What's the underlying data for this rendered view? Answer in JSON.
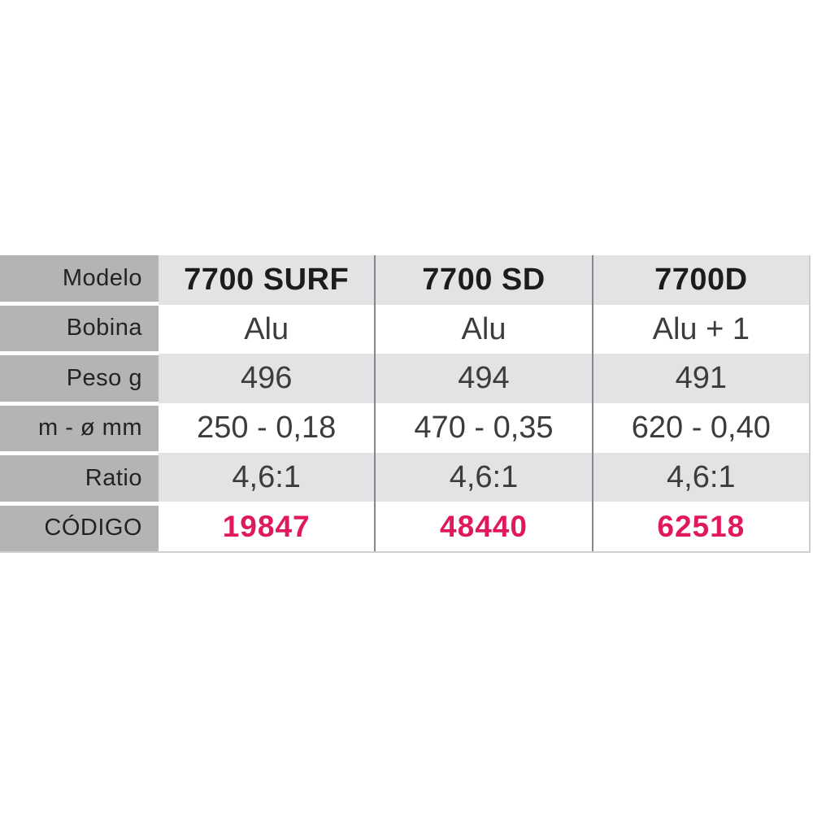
{
  "table": {
    "row_labels": [
      "Modelo",
      "Bobina",
      "Peso g",
      "m - ø mm",
      "Ratio",
      "CÓDIGO"
    ],
    "columns": [
      {
        "model": "7700 SURF",
        "bobina": "Alu",
        "peso": "496",
        "m_diam": "250 - 0,18",
        "ratio": "4,6:1",
        "codigo": "19847"
      },
      {
        "model": "7700 SD",
        "bobina": "Alu",
        "peso": "494",
        "m_diam": "470 - 0,35",
        "ratio": "4,6:1",
        "codigo": "48440"
      },
      {
        "model": "7700D",
        "bobina": "Alu + 1",
        "peso": "491",
        "m_diam": "620 - 0,40",
        "ratio": "4,6:1",
        "codigo": "62518"
      }
    ],
    "colors": {
      "label_bg": "#b3b4b6",
      "alt_row_bg": "#e2e3e4",
      "divider": "#85878a",
      "code_accent": "#e0195b"
    }
  },
  "chart_data": {
    "type": "table",
    "title": "",
    "column_headers": [
      "Modelo",
      "7700 SURF",
      "7700 SD",
      "7700D"
    ],
    "rows": [
      [
        "Bobina",
        "Alu",
        "Alu",
        "Alu + 1"
      ],
      [
        "Peso g",
        "496",
        "494",
        "491"
      ],
      [
        "m - ø mm",
        "250 - 0,18",
        "470 - 0,35",
        "620 - 0,40"
      ],
      [
        "Ratio",
        "4,6:1",
        "4,6:1",
        "4,6:1"
      ],
      [
        "CÓDIGO",
        "19847",
        "48440",
        "62518"
      ]
    ]
  }
}
